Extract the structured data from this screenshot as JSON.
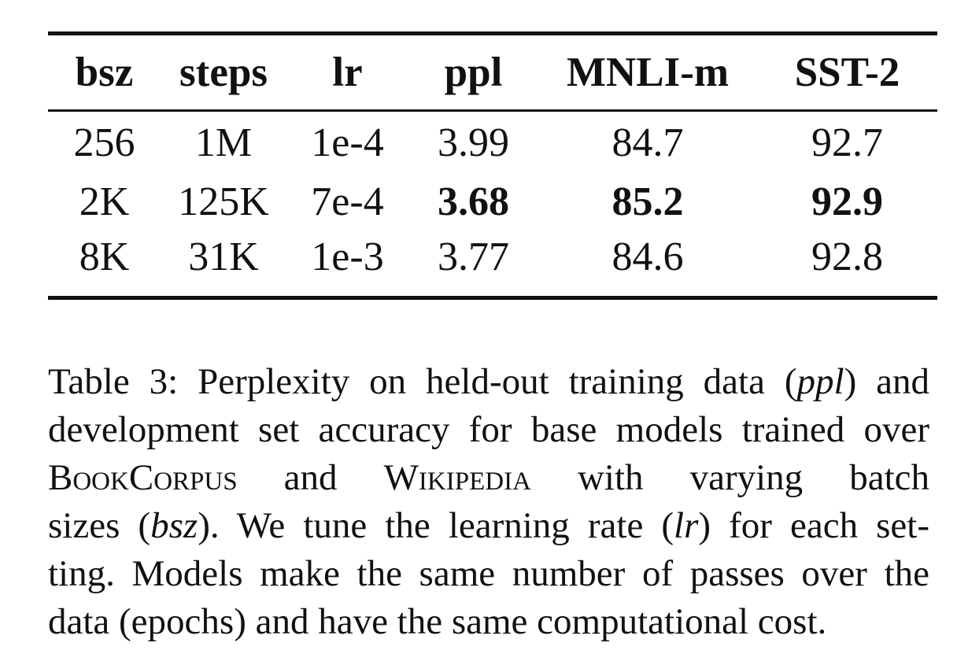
{
  "table": {
    "headers": [
      "bsz",
      "steps",
      "lr",
      "ppl",
      "MNLI-m",
      "SST-2"
    ],
    "rows": [
      [
        "256",
        "1M",
        "1e-4",
        "3.99",
        "84.7",
        "92.7"
      ],
      [
        "2K",
        "125K",
        "7e-4",
        "3.68",
        "85.2",
        "92.9"
      ],
      [
        "8K",
        "31K",
        "1e-3",
        "3.77",
        "84.6",
        "92.8"
      ]
    ],
    "bold_cells": [
      [
        1,
        3
      ],
      [
        1,
        4
      ],
      [
        1,
        5
      ]
    ]
  },
  "caption": {
    "l1a": "Table 3: Perplexity on held-out training data (",
    "l1b": "ppl",
    "l1c": ") and",
    "l2": "development set accuracy for base models trained over",
    "l3a": "BookCorpus",
    "l3b": " and ",
    "l3c": "Wikipedia",
    "l3d": " with varying batch",
    "l4a": "sizes (",
    "l4b": "bsz",
    "l4c": "). We tune the learning rate (",
    "l4d": "lr",
    "l4e": ") for each set-",
    "l5": "ting. Models make the same number of passes over the",
    "l6": "data (epochs) and have the same computational cost."
  }
}
